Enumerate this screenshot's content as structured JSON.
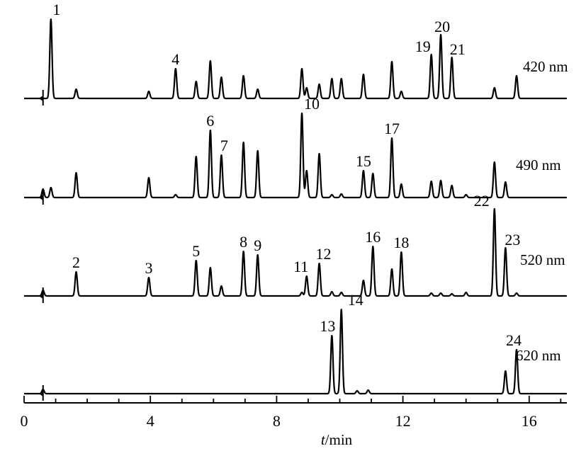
{
  "chart_data": {
    "type": "line",
    "title": "",
    "xlabel_italic": "t",
    "xlabel_unit": "/min",
    "xlim": [
      0,
      17
    ],
    "x_ticks": [
      0,
      4,
      8,
      12,
      16
    ],
    "x_tick_labels": [
      "0",
      "4",
      "8",
      "12",
      "16"
    ],
    "grid": false,
    "series": [
      {
        "name": "420 nm",
        "peaks": [
          {
            "t": 0.85,
            "h": 112,
            "label": "1"
          },
          {
            "t": 1.65,
            "h": 13
          },
          {
            "t": 3.95,
            "h": 10
          },
          {
            "t": 4.8,
            "h": 42,
            "label": "4"
          },
          {
            "t": 5.45,
            "h": 24
          },
          {
            "t": 5.9,
            "h": 53
          },
          {
            "t": 6.25,
            "h": 30
          },
          {
            "t": 6.95,
            "h": 32
          },
          {
            "t": 7.4,
            "h": 13
          },
          {
            "t": 8.8,
            "h": 42
          },
          {
            "t": 8.95,
            "h": 15
          },
          {
            "t": 9.35,
            "h": 20
          },
          {
            "t": 9.75,
            "h": 28
          },
          {
            "t": 10.05,
            "h": 28
          },
          {
            "t": 10.75,
            "h": 34
          },
          {
            "t": 11.65,
            "h": 52
          },
          {
            "t": 11.95,
            "h": 10
          },
          {
            "t": 12.9,
            "h": 62,
            "label": "19"
          },
          {
            "t": 13.2,
            "h": 90,
            "label": "20"
          },
          {
            "t": 13.55,
            "h": 58,
            "label": "21"
          },
          {
            "t": 14.9,
            "h": 15
          },
          {
            "t": 15.6,
            "h": 32
          }
        ]
      },
      {
        "name": "490 nm",
        "peaks": [
          {
            "t": 0.6,
            "h": 12
          },
          {
            "t": 0.85,
            "h": 14
          },
          {
            "t": 1.65,
            "h": 35
          },
          {
            "t": 3.95,
            "h": 28
          },
          {
            "t": 4.8,
            "h": 4
          },
          {
            "t": 5.45,
            "h": 58
          },
          {
            "t": 5.9,
            "h": 95,
            "label": "6"
          },
          {
            "t": 6.25,
            "h": 60,
            "label": "7"
          },
          {
            "t": 6.95,
            "h": 78
          },
          {
            "t": 7.4,
            "h": 66
          },
          {
            "t": 8.8,
            "h": 119,
            "label": "10"
          },
          {
            "t": 8.95,
            "h": 38
          },
          {
            "t": 9.35,
            "h": 62
          },
          {
            "t": 9.75,
            "h": 4
          },
          {
            "t": 10.05,
            "h": 5
          },
          {
            "t": 10.75,
            "h": 38,
            "label": "15"
          },
          {
            "t": 11.05,
            "h": 34
          },
          {
            "t": 11.65,
            "h": 84,
            "label": "17"
          },
          {
            "t": 11.95,
            "h": 19
          },
          {
            "t": 12.9,
            "h": 23
          },
          {
            "t": 13.2,
            "h": 24
          },
          {
            "t": 13.55,
            "h": 17
          },
          {
            "t": 14.0,
            "h": 4
          },
          {
            "t": 14.9,
            "h": 50
          },
          {
            "t": 15.25,
            "h": 22
          }
        ]
      },
      {
        "name": "520 nm",
        "peaks": [
          {
            "t": 0.6,
            "h": 8
          },
          {
            "t": 1.65,
            "h": 34,
            "label": "2"
          },
          {
            "t": 3.95,
            "h": 26,
            "label": "3"
          },
          {
            "t": 5.45,
            "h": 50,
            "label": "5"
          },
          {
            "t": 5.9,
            "h": 40
          },
          {
            "t": 6.25,
            "h": 14
          },
          {
            "t": 6.95,
            "h": 63,
            "label": "8"
          },
          {
            "t": 7.4,
            "h": 58,
            "label": "9"
          },
          {
            "t": 8.8,
            "h": 5
          },
          {
            "t": 8.95,
            "h": 28,
            "label": "11"
          },
          {
            "t": 9.35,
            "h": 46,
            "label": "12"
          },
          {
            "t": 9.75,
            "h": 6
          },
          {
            "t": 10.05,
            "h": 5
          },
          {
            "t": 10.75,
            "h": 22
          },
          {
            "t": 11.05,
            "h": 70,
            "label": "16"
          },
          {
            "t": 11.65,
            "h": 38
          },
          {
            "t": 11.95,
            "h": 62,
            "label": "18"
          },
          {
            "t": 12.9,
            "h": 4
          },
          {
            "t": 13.2,
            "h": 4
          },
          {
            "t": 13.55,
            "h": 3
          },
          {
            "t": 14.0,
            "h": 5
          },
          {
            "t": 14.9,
            "h": 123,
            "label": "22"
          },
          {
            "t": 15.25,
            "h": 68,
            "label": "23"
          },
          {
            "t": 15.6,
            "h": 4
          }
        ]
      },
      {
        "name": "620 nm",
        "peaks": [
          {
            "t": 0.6,
            "h": 6
          },
          {
            "t": 9.75,
            "h": 82,
            "label": "13"
          },
          {
            "t": 10.05,
            "h": 119,
            "label": "14"
          },
          {
            "t": 10.55,
            "h": 4
          },
          {
            "t": 10.9,
            "h": 5
          },
          {
            "t": 15.25,
            "h": 32
          },
          {
            "t": 15.6,
            "h": 62,
            "label": "24"
          }
        ]
      }
    ]
  }
}
